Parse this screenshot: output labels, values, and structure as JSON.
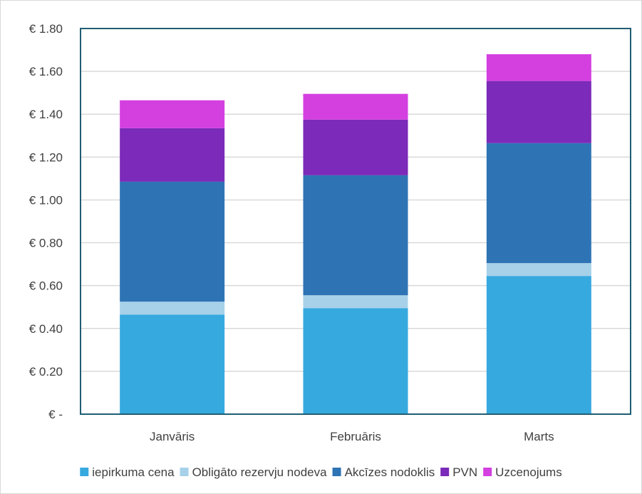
{
  "chart_data": {
    "type": "bar",
    "stacked": true,
    "categories": [
      "Janvāris",
      "Februāris",
      "Marts"
    ],
    "series": [
      {
        "name": "iepirkuma cena",
        "color": "#36A9DF",
        "values": [
          0.465,
          0.495,
          0.645
        ]
      },
      {
        "name": "Obligāto rezervju nodeva",
        "color": "#A6D1E9",
        "values": [
          0.06,
          0.06,
          0.06
        ]
      },
      {
        "name": "Akcīzes nodoklis",
        "color": "#2E74B5",
        "values": [
          0.56,
          0.56,
          0.56
        ]
      },
      {
        "name": "PVN",
        "color": "#7B2AB9",
        "values": [
          0.25,
          0.26,
          0.29
        ]
      },
      {
        "name": "Uzcenojums",
        "color": "#D43FE0",
        "values": [
          0.13,
          0.12,
          0.125
        ]
      }
    ],
    "y_tick_values": [
      0,
      0.2,
      0.4,
      0.6,
      0.8,
      1.0,
      1.2,
      1.4,
      1.6,
      1.8
    ],
    "y_tick_labels": [
      "€ -",
      "€ 0.20",
      "€ 0.40",
      "€ 0.60",
      "€ 0.80",
      "€ 1.00",
      "€ 1.20",
      "€ 1.40",
      "€ 1.60",
      "€ 1.80"
    ],
    "ylim": [
      0,
      1.8
    ],
    "grid": true,
    "legend_position": "bottom",
    "plot_border_color": "#1F5E73",
    "gridline_color": "#D9D9D9"
  }
}
